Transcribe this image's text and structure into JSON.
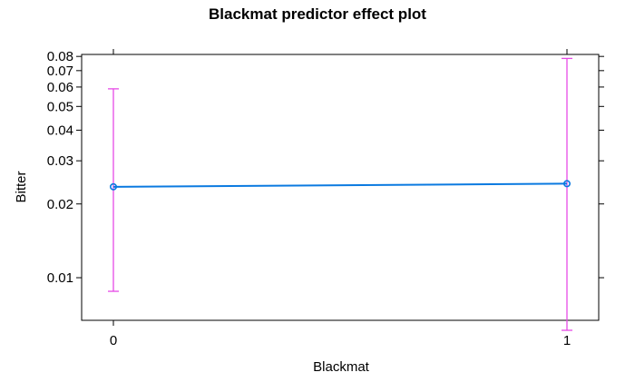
{
  "chart_data": {
    "type": "line",
    "title": "Blackmat predictor effect plot",
    "xlabel": "Blackmat",
    "ylabel": "Bitter",
    "x_ticks": [
      "0",
      "1"
    ],
    "y_scale": "log",
    "y_ticks": [
      0.01,
      0.02,
      0.03,
      0.04,
      0.05,
      0.06,
      0.07,
      0.08
    ],
    "y_tick_labels": [
      "0.01",
      "0.02",
      "0.03",
      "0.04",
      "0.05",
      "0.06",
      "0.07",
      "0.08"
    ],
    "xlim": [
      -0.07,
      1.07
    ],
    "ylim": [
      0.0067,
      0.0815
    ],
    "grid": false,
    "series": [
      {
        "x": [
          0,
          1
        ],
        "values": [
          0.0235,
          0.0242
        ],
        "lower": [
          0.0088,
          0.0061
        ],
        "upper": [
          0.059,
          0.0785
        ],
        "line_color": "#0b7ae0",
        "ci_color": "#e64ae6"
      }
    ]
  }
}
